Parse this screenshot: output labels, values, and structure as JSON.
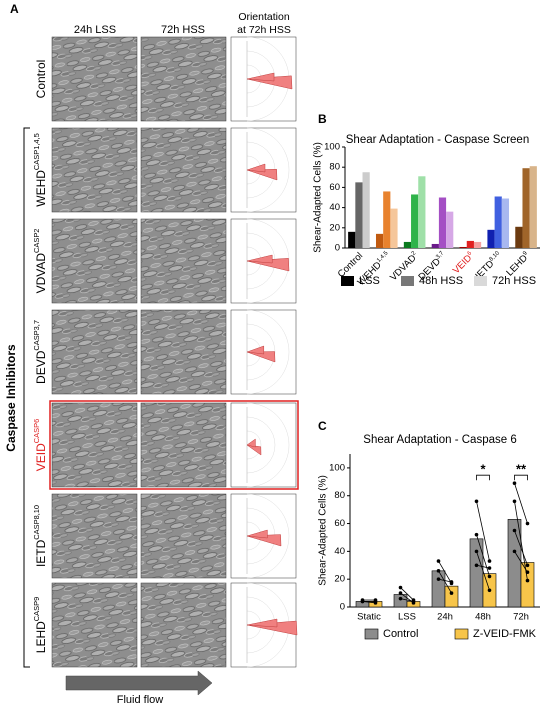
{
  "panel_a": {
    "label": "A",
    "columns": [
      "24h LSS",
      "72h HSS",
      [
        "Orientation",
        "at 72h HSS"
      ]
    ],
    "rows": [
      {
        "name": "Control"
      },
      {
        "name": "WEHD",
        "sup": "CASP1,4,5"
      },
      {
        "name": "VDVAD",
        "sup": "CASP2"
      },
      {
        "name": "DEVD",
        "sup": "CASP3,7"
      },
      {
        "name": "VEID",
        "sup": "CASP6",
        "color": "#e02020"
      },
      {
        "name": "IETD",
        "sup": "CASP8,10"
      },
      {
        "name": "LEHD",
        "sup": "CASP9"
      }
    ],
    "group_label": "Caspase Inhibitors",
    "flow_label": "Fluid flow"
  },
  "chart_data": [
    {
      "type": "bar",
      "panel": "B",
      "title": "Shear Adaptation - Caspase Screen",
      "ylabel": "Shear-Adapted Cells (%)",
      "categories": [
        "Control",
        "WEHD",
        "VDVAD",
        "DEVD",
        "VEID",
        "IETD",
        "LEHD"
      ],
      "category_superscripts": [
        null,
        "1,4,5",
        "2",
        "3,7",
        "6",
        "8,10",
        "9"
      ],
      "category_label_colors": [
        "#000",
        "#000",
        "#000",
        "#000",
        "#e02020",
        "#000",
        "#000"
      ],
      "category_colors": [
        [
          "#000000",
          "#666666",
          "#cccccc"
        ],
        [
          "#c05a10",
          "#e8822e",
          "#f5c69a"
        ],
        [
          "#0a7a1e",
          "#2fb34a",
          "#9fe0a8"
        ],
        [
          "#6a1a8a",
          "#a44fc4",
          "#d6a8e6"
        ],
        [
          "#a00000",
          "#e02020",
          "#f5a0a0"
        ],
        [
          "#1020b0",
          "#4060e0",
          "#a8b8f0"
        ],
        [
          "#6b3a10",
          "#a0652a",
          "#d8b48a"
        ]
      ],
      "series": [
        {
          "name": "LSS",
          "color": "#000000",
          "values": [
            16,
            14,
            6,
            4,
            1,
            18,
            21
          ]
        },
        {
          "name": "48h HSS",
          "color": "#777777",
          "values": [
            65,
            56,
            53,
            50,
            7,
            51,
            79
          ]
        },
        {
          "name": "72h HSS",
          "color": "#d9d9d9",
          "values": [
            75,
            39,
            71,
            36,
            6,
            49,
            81
          ]
        }
      ],
      "ylim": [
        0,
        100
      ],
      "yticks": [
        0,
        20,
        40,
        60,
        80,
        100
      ]
    },
    {
      "type": "bar",
      "panel": "C",
      "title": "Shear Adaptation - Caspase 6",
      "ylabel": "Shear-Adapted Cells (%)",
      "categories": [
        "Static",
        "LSS",
        "24h",
        "48h",
        "72h"
      ],
      "series": [
        {
          "name": "Control",
          "color": "#8c8c8c",
          "values": [
            4,
            9,
            26,
            49,
            63
          ]
        },
        {
          "name": "Z-VEID-FMK",
          "color": "#f7c54a",
          "values": [
            4,
            4,
            15,
            24,
            32
          ]
        }
      ],
      "replicates": [
        [
          [
            4,
            4
          ],
          [
            5,
            5
          ],
          [
            4,
            3
          ]
        ],
        [
          [
            14,
            5
          ],
          [
            10,
            3
          ],
          [
            6,
            4
          ]
        ],
        [
          [
            33,
            17
          ],
          [
            26,
            10
          ],
          [
            20,
            18
          ]
        ],
        [
          [
            76,
            33
          ],
          [
            52,
            22
          ],
          [
            40,
            12
          ],
          [
            30,
            28
          ]
        ],
        [
          [
            89,
            60
          ],
          [
            76,
            19
          ],
          [
            55,
            30
          ],
          [
            40,
            25
          ]
        ]
      ],
      "annotations": [
        {
          "text": "*",
          "category": "48h"
        },
        {
          "text": "**",
          "category": "72h"
        }
      ],
      "ylim": [
        0,
        110
      ],
      "yticks": [
        0,
        20,
        40,
        60,
        80,
        100
      ]
    }
  ]
}
